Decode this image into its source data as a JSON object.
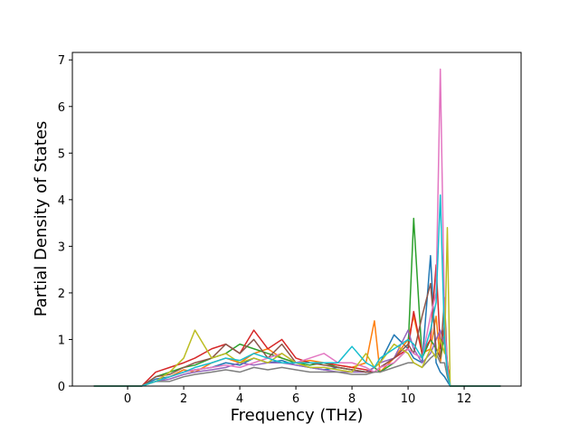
{
  "chart_data": {
    "type": "line",
    "x_label": "Frequency (THz)",
    "y_label": "Partial Density of States",
    "x": [
      -1.2,
      0,
      0.5,
      1,
      1.5,
      2,
      2.4,
      3,
      3.5,
      4,
      4.5,
      5,
      5.5,
      6,
      6.5,
      7,
      7.5,
      8,
      8.5,
      8.8,
      9,
      9.5,
      10,
      10.2,
      10.5,
      10.8,
      11,
      11.15,
      11.3,
      11.4,
      11.5,
      12,
      13.3
    ],
    "series": [
      {
        "color": "#1f77b4",
        "values": [
          0,
          0,
          0,
          0.15,
          0.2,
          0.3,
          0.35,
          0.4,
          0.5,
          0.45,
          0.6,
          0.5,
          0.55,
          0.45,
          0.4,
          0.35,
          0.4,
          0.35,
          0.3,
          0.4,
          0.5,
          1.1,
          0.8,
          0.6,
          0.5,
          2.8,
          0.5,
          0.3,
          0.2,
          0.1,
          0,
          0,
          0
        ]
      },
      {
        "color": "#ff7f0e",
        "values": [
          0,
          0,
          0,
          0.1,
          0.2,
          0.35,
          0.3,
          0.5,
          0.6,
          0.5,
          0.7,
          0.8,
          0.6,
          0.5,
          0.55,
          0.5,
          0.45,
          0.4,
          0.5,
          1.4,
          0.3,
          0.6,
          1.0,
          1.5,
          0.7,
          0.8,
          1.5,
          0.5,
          1.2,
          0.4,
          0,
          0,
          0
        ]
      },
      {
        "color": "#2ca02c",
        "values": [
          0,
          0,
          0,
          0.2,
          0.3,
          0.4,
          0.45,
          0.6,
          0.7,
          0.9,
          0.8,
          0.7,
          0.6,
          0.5,
          0.45,
          0.5,
          0.4,
          0.35,
          0.3,
          0.4,
          0.3,
          0.5,
          0.8,
          3.6,
          0.6,
          1.0,
          0.8,
          0.6,
          1.1,
          0.5,
          0,
          0,
          0
        ]
      },
      {
        "color": "#d62728",
        "values": [
          0,
          0,
          0,
          0.3,
          0.4,
          0.5,
          0.6,
          0.8,
          0.9,
          0.7,
          1.2,
          0.8,
          1.0,
          0.6,
          0.5,
          0.5,
          0.45,
          0.4,
          0.35,
          0.3,
          0.4,
          0.6,
          0.8,
          1.6,
          0.7,
          1.0,
          2.6,
          0.8,
          1.3,
          0.5,
          0,
          0,
          0
        ]
      },
      {
        "color": "#9467bd",
        "values": [
          0,
          0,
          0,
          0.1,
          0.15,
          0.25,
          0.3,
          0.35,
          0.4,
          0.5,
          0.45,
          0.5,
          0.5,
          0.45,
          0.4,
          0.35,
          0.3,
          0.3,
          0.3,
          0.4,
          0.5,
          0.6,
          1.2,
          0.8,
          0.5,
          0.7,
          1.0,
          1.2,
          0.9,
          0.3,
          0,
          0,
          0
        ]
      },
      {
        "color": "#8c564b",
        "values": [
          0,
          0,
          0,
          0.2,
          0.25,
          0.4,
          0.5,
          0.6,
          0.9,
          0.7,
          1.0,
          0.6,
          0.9,
          0.5,
          0.5,
          0.45,
          0.4,
          0.35,
          0.3,
          0.3,
          0.4,
          0.6,
          0.9,
          0.7,
          1.5,
          2.2,
          0.8,
          0.6,
          1.9,
          0.4,
          0,
          0,
          0
        ]
      },
      {
        "color": "#e377c2",
        "values": [
          0,
          0,
          0,
          0.1,
          0.2,
          0.3,
          0.35,
          0.4,
          0.45,
          0.4,
          0.5,
          0.6,
          0.7,
          0.5,
          0.6,
          0.7,
          0.5,
          0.5,
          0.4,
          0.3,
          0.4,
          0.5,
          0.8,
          0.7,
          0.6,
          1.5,
          2.0,
          6.8,
          1.5,
          0.4,
          0,
          0,
          0
        ]
      },
      {
        "color": "#7f7f7f",
        "values": [
          0,
          0,
          0,
          0.1,
          0.1,
          0.2,
          0.25,
          0.3,
          0.35,
          0.3,
          0.4,
          0.35,
          0.4,
          0.35,
          0.3,
          0.3,
          0.3,
          0.25,
          0.25,
          0.3,
          0.3,
          0.4,
          0.5,
          0.5,
          0.4,
          0.6,
          0.7,
          0.5,
          0.5,
          0.2,
          0,
          0,
          0
        ]
      },
      {
        "color": "#bcbd22",
        "values": [
          0,
          0,
          0,
          0.1,
          0.3,
          0.6,
          1.2,
          0.6,
          0.7,
          0.5,
          0.6,
          0.5,
          0.7,
          0.5,
          0.4,
          0.4,
          0.35,
          0.3,
          0.7,
          0.4,
          0.5,
          0.9,
          0.7,
          0.5,
          0.4,
          0.8,
          0.6,
          1.0,
          0.7,
          3.4,
          0,
          0,
          0
        ]
      },
      {
        "color": "#17becf",
        "values": [
          0,
          0,
          0,
          0.1,
          0.2,
          0.3,
          0.4,
          0.5,
          0.6,
          0.55,
          0.7,
          0.6,
          0.5,
          0.5,
          0.5,
          0.5,
          0.5,
          0.85,
          0.5,
          0.4,
          0.6,
          0.8,
          1.0,
          0.9,
          0.6,
          1.2,
          1.8,
          4.1,
          1.0,
          0.3,
          0,
          0,
          0
        ]
      }
    ],
    "xlim": [
      -1.97,
      14.03
    ],
    "ylim": [
      0,
      7.16
    ],
    "xticks": [
      0,
      2,
      4,
      6,
      8,
      10,
      12
    ],
    "yticks": [
      0,
      1,
      2,
      3,
      4,
      5,
      6,
      7
    ],
    "grid": false
  }
}
